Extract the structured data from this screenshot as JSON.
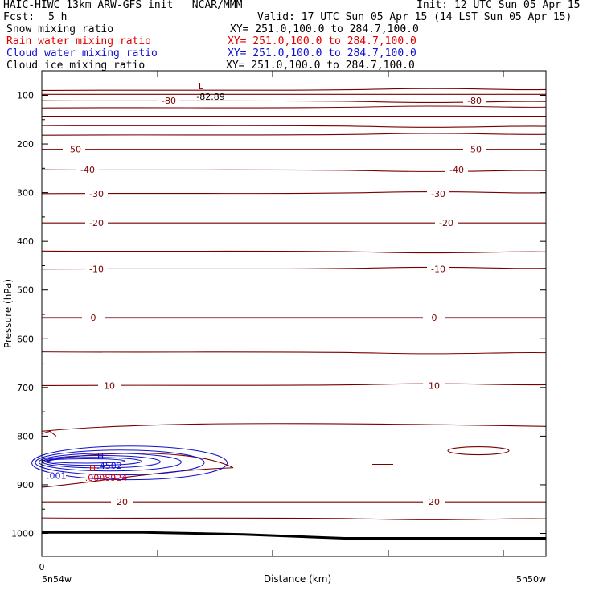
{
  "header": {
    "title": "HAIC-HIWC 13km ARW-GFS init   NCAR/MMM",
    "init": "Init: 12 UTC Sun 05 Apr 15",
    "fcst_label": "Fcst:",
    "fcst_value": "5 h",
    "valid": "Valid: 17 UTC Sun 05 Apr 15 (14 LST Sun 05 Apr 15)"
  },
  "fields": [
    {
      "name": "Snow mixing ratio",
      "xy": "XY= 251.0,100.0 to 284.7,100.0",
      "color": "#000000"
    },
    {
      "name": "Rain water mixing ratio",
      "xy": "XY= 251.0,100.0 to 284.7,100.0",
      "color": "#e00000"
    },
    {
      "name": "Cloud water mixing ratio",
      "xy": "XY= 251.0,100.0 to 284.7,100.0",
      "color": "#1010d0"
    },
    {
      "name": "Cloud ice mixing ratio",
      "xy": "XY= 251.0,100.0 to 284.7,100.0",
      "color": "#000000"
    }
  ],
  "chart_data": {
    "type": "line",
    "ylabel": "Pressure (hPa)",
    "xlabel": "Distance (km)",
    "yticks": [
      100,
      200,
      300,
      400,
      500,
      600,
      700,
      800,
      900,
      1000
    ],
    "ylim": [
      1050,
      60
    ],
    "x_tick_label": "0",
    "x_left_label": "5n54w",
    "x_right_label": "5n50w",
    "temperature_contour_labels": [
      "-80",
      "-80",
      "-50",
      "-50",
      "-40",
      "-40",
      "-30",
      "-30",
      "-20",
      "-20",
      "-10",
      "-10",
      "0",
      "0",
      "10",
      "10",
      "20",
      "20"
    ],
    "temperature_contours": [
      {
        "p": 90,
        "label": "-80",
        "show_label": false
      },
      {
        "p": 98,
        "label": "-80",
        "show_label": false
      },
      {
        "p": 111,
        "label": "-80",
        "show_label": true
      },
      {
        "p": 126,
        "label": "",
        "show_label": false
      },
      {
        "p": 143,
        "label": "",
        "show_label": false
      },
      {
        "p": 162,
        "label": "",
        "show_label": false
      },
      {
        "p": 182,
        "label": "",
        "show_label": false
      },
      {
        "p": 211,
        "label": "-50",
        "show_label": true
      },
      {
        "p": 253,
        "label": "-40",
        "show_label": true
      },
      {
        "p": 302,
        "label": "-30",
        "show_label": true
      },
      {
        "p": 362,
        "label": "-20",
        "show_label": true
      },
      {
        "p": 420,
        "label": "",
        "show_label": false
      },
      {
        "p": 457,
        "label": "-10",
        "show_label": true
      },
      {
        "p": 557,
        "label": "0",
        "show_label": true
      },
      {
        "p": 627,
        "label": "",
        "show_label": false
      },
      {
        "p": 696,
        "label": "10",
        "show_label": true
      },
      {
        "p": 935,
        "label": "20",
        "show_label": true
      },
      {
        "p": 968,
        "label": "",
        "show_label": false
      }
    ],
    "extremum_low": {
      "letter": "L",
      "value": "-82.89"
    },
    "rain_water": {
      "letter": "H",
      "value": ".0008924"
    },
    "cloud_water": {
      "letter": "H",
      "value": ".4502",
      "contour_label": ".001"
    },
    "surface_pressure": [
      998,
      998,
      1002,
      1010,
      1010,
      1010
    ]
  },
  "colors": {
    "temperature": "#7a0000",
    "rain": "#e00000",
    "cloud": "#1010d0",
    "ground": "#000000",
    "frame": "#000000"
  }
}
